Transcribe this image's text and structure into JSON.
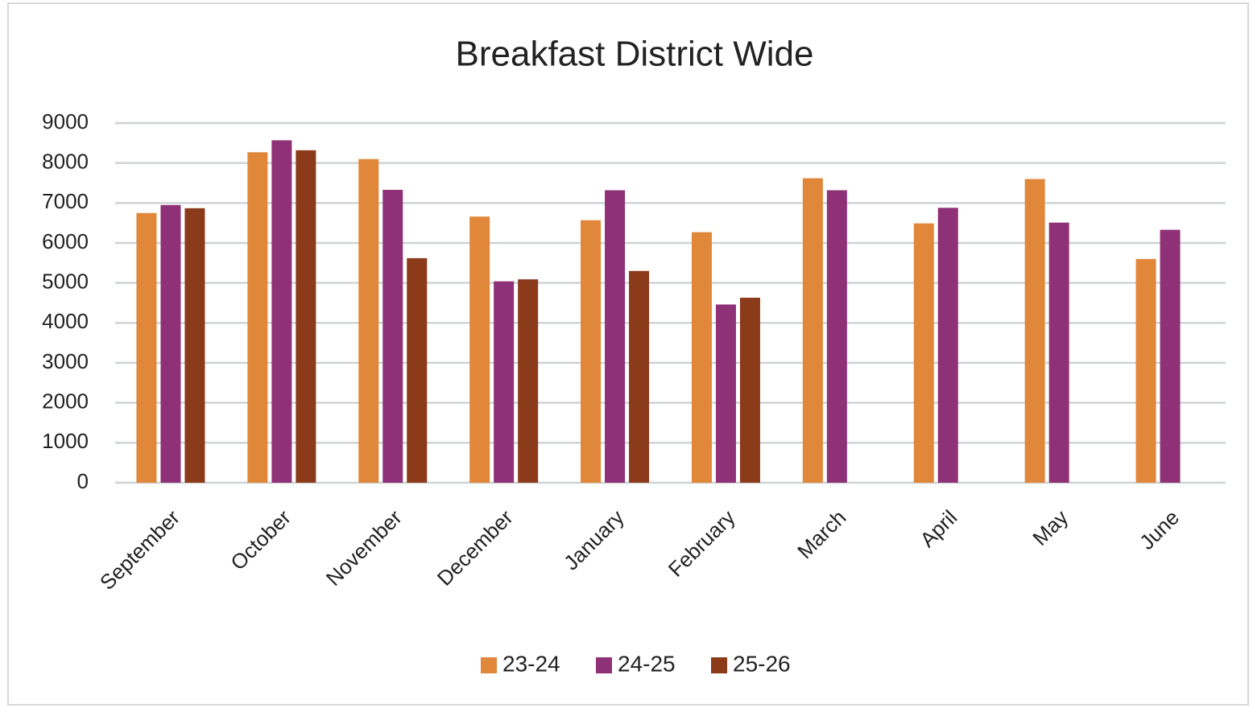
{
  "chart_data": {
    "type": "bar",
    "title": "Breakfast District Wide",
    "categories": [
      "September",
      "October",
      "November",
      "December",
      "January",
      "February",
      "March",
      "April",
      "May",
      "June"
    ],
    "series": [
      {
        "name": "23-24",
        "color": "#e0873a",
        "values": [
          6750,
          8270,
          8100,
          6660,
          6570,
          6270,
          7620,
          6490,
          7600,
          5600
        ]
      },
      {
        "name": "24-25",
        "color": "#8e3177",
        "values": [
          6950,
          8570,
          7330,
          5040,
          7320,
          4460,
          7320,
          6880,
          6510,
          6330
        ]
      },
      {
        "name": "25-26",
        "color": "#8b3a1a",
        "values": [
          6870,
          8320,
          5620,
          5090,
          5300,
          4630,
          null,
          null,
          null,
          null
        ]
      }
    ],
    "ylim": [
      0,
      9000
    ],
    "yticks": [
      0,
      1000,
      2000,
      3000,
      4000,
      5000,
      6000,
      7000,
      8000,
      9000
    ],
    "grid": true,
    "legend": "bottom"
  }
}
